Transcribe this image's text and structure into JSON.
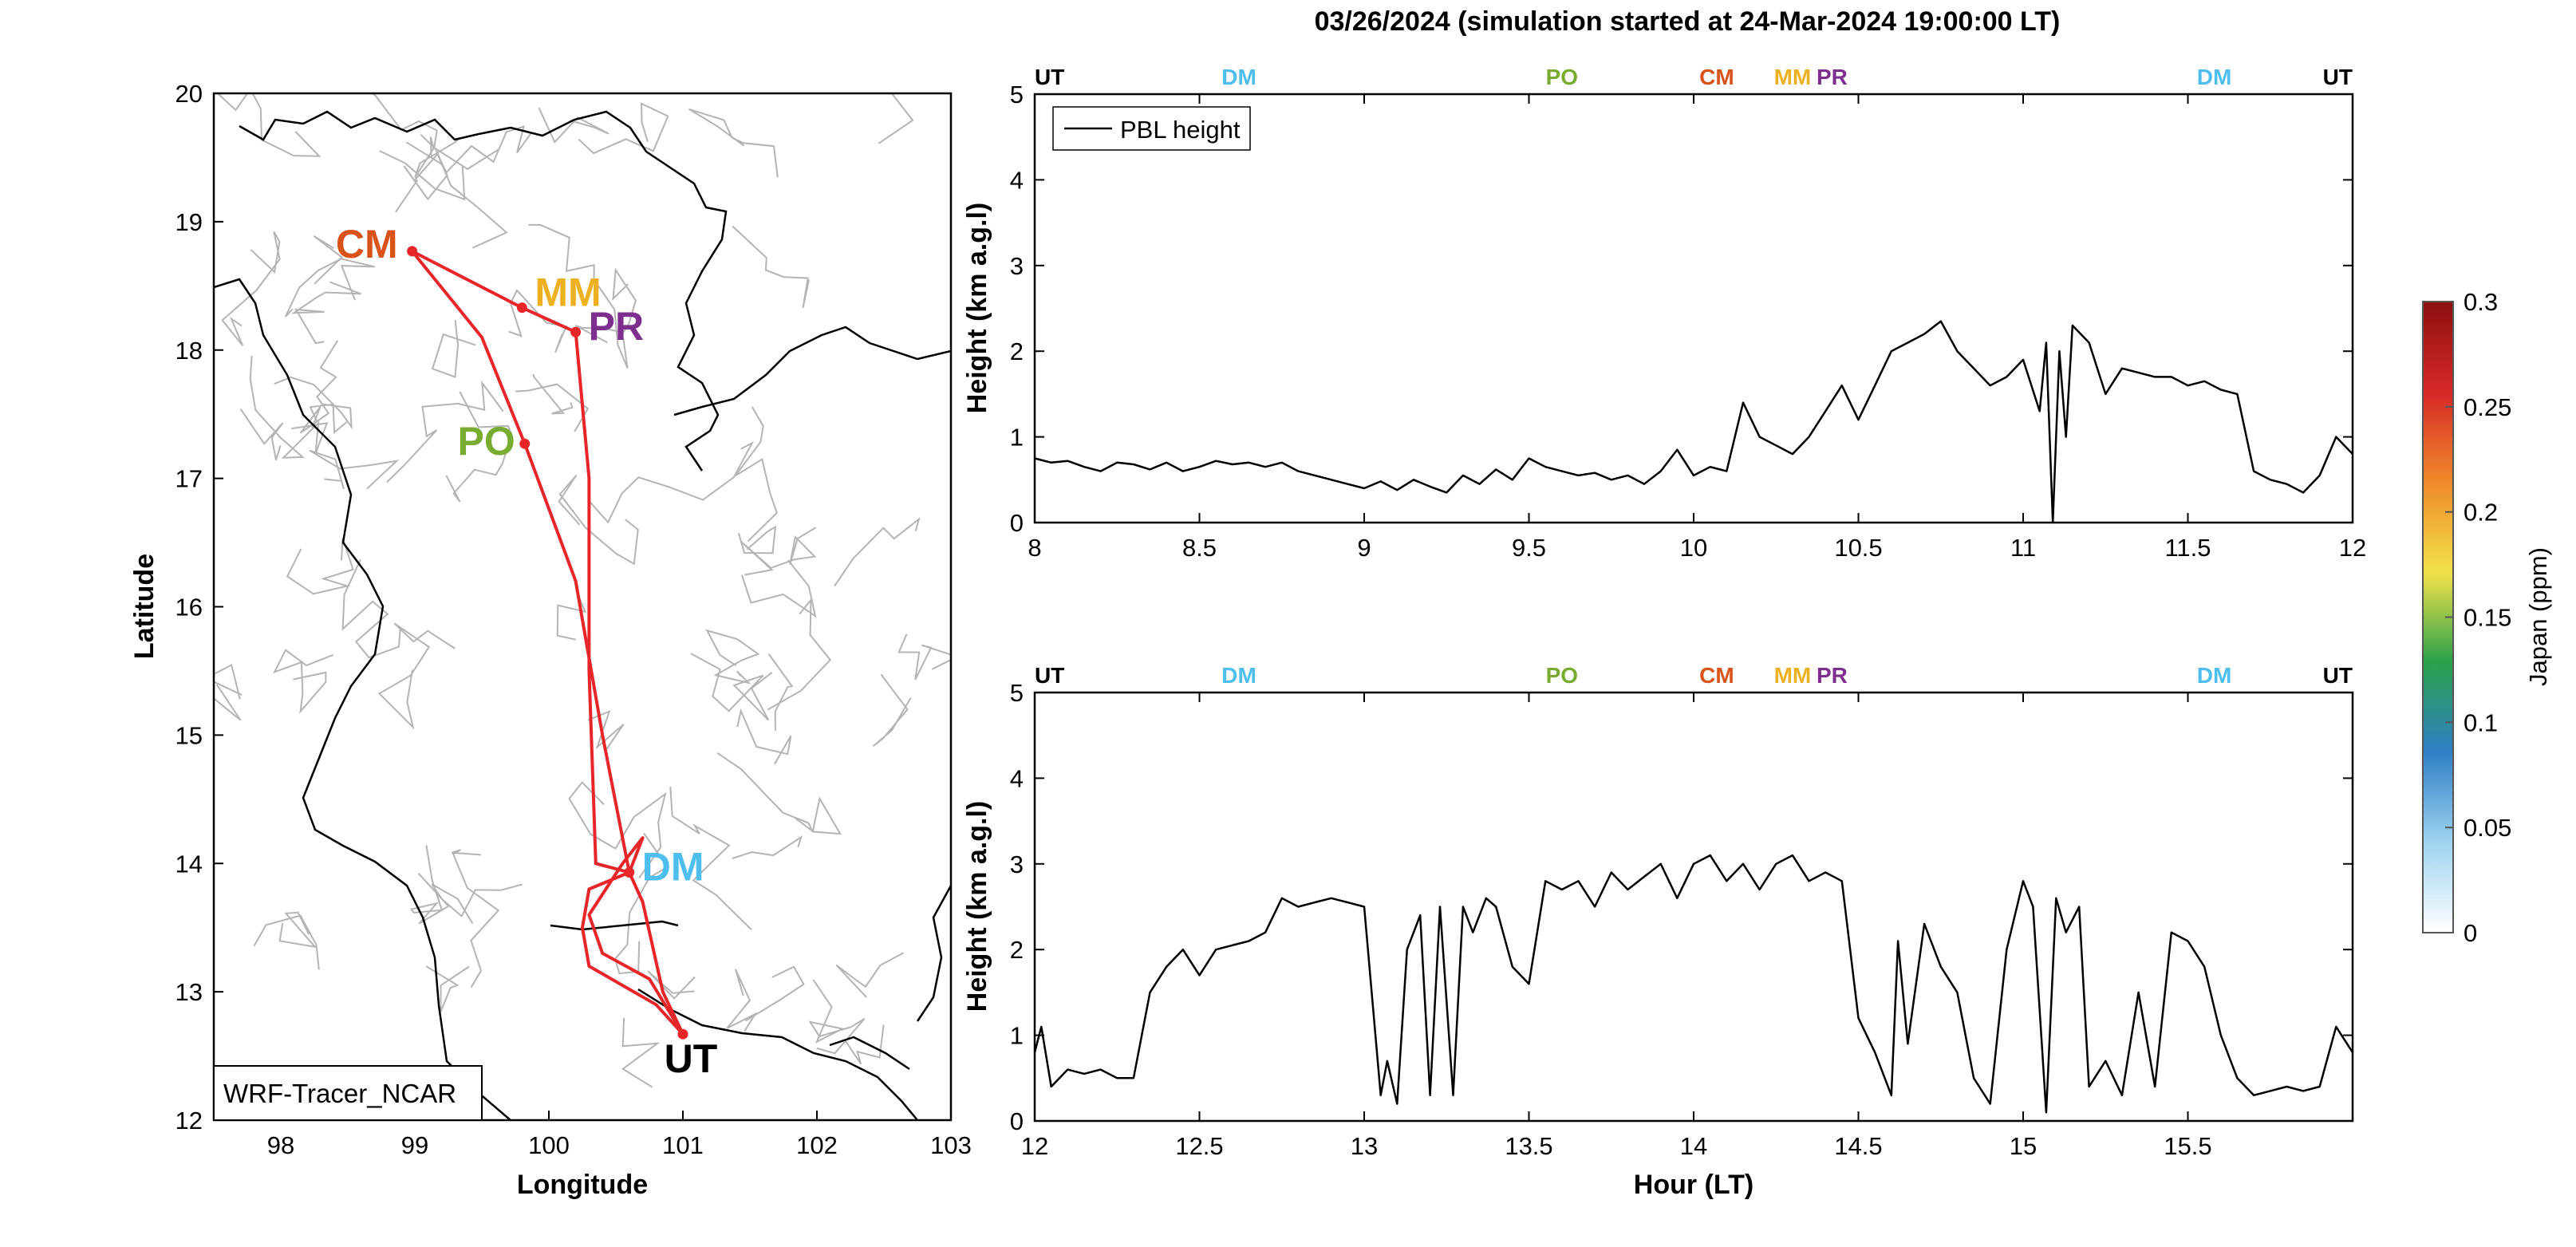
{
  "figure": {
    "title": "03/26/2024 (simulation started at 24-Mar-2024 19:00:00 LT)"
  },
  "chart_data": [
    {
      "type": "map",
      "xlabel": "Longitude",
      "ylabel": "Latitude",
      "xlim": [
        97.5,
        103
      ],
      "ylim": [
        12,
        20
      ],
      "xticks": [
        "98",
        "99",
        "100",
        "101",
        "102",
        "103"
      ],
      "yticks": [
        "12",
        "13",
        "14",
        "15",
        "16",
        "17",
        "18",
        "19",
        "20"
      ],
      "annotation": "WRF-Tracer_NCAR",
      "grid": false,
      "route_color": "#e8262a",
      "stations": [
        {
          "name": "CM",
          "lon": 98.98,
          "lat": 18.77,
          "color": "#d95319"
        },
        {
          "name": "MM",
          "lon": 99.8,
          "lat": 18.33,
          "color": "#edb120"
        },
        {
          "name": "PR",
          "lon": 100.2,
          "lat": 18.14,
          "color": "#7e2f8e"
        },
        {
          "name": "PO",
          "lon": 99.82,
          "lat": 17.27,
          "color": "#77ac30"
        },
        {
          "name": "DM",
          "lon": 100.6,
          "lat": 13.93,
          "color": "#4dbeee"
        },
        {
          "name": "UT",
          "lon": 101.0,
          "lat": 12.67,
          "color": "#000000"
        }
      ],
      "route": [
        {
          "lon": 101.0,
          "lat": 12.67
        },
        {
          "lon": 100.85,
          "lat": 13.0
        },
        {
          "lon": 100.7,
          "lat": 13.7
        },
        {
          "lon": 100.6,
          "lat": 13.93
        },
        {
          "lon": 100.4,
          "lat": 15.0
        },
        {
          "lon": 100.2,
          "lat": 16.2
        },
        {
          "lon": 99.82,
          "lat": 17.27
        },
        {
          "lon": 99.5,
          "lat": 18.1
        },
        {
          "lon": 98.98,
          "lat": 18.77
        },
        {
          "lon": 99.8,
          "lat": 18.33
        },
        {
          "lon": 100.2,
          "lat": 18.14
        },
        {
          "lon": 100.3,
          "lat": 17.0
        },
        {
          "lon": 100.3,
          "lat": 15.5
        },
        {
          "lon": 100.35,
          "lat": 14.0
        },
        {
          "lon": 100.6,
          "lat": 13.93
        },
        {
          "lon": 100.7,
          "lat": 14.2
        },
        {
          "lon": 100.55,
          "lat": 14.0
        },
        {
          "lon": 100.3,
          "lat": 13.6
        },
        {
          "lon": 100.4,
          "lat": 13.3
        },
        {
          "lon": 100.75,
          "lat": 13.1
        },
        {
          "lon": 101.0,
          "lat": 12.67
        },
        {
          "lon": 100.8,
          "lat": 12.9
        },
        {
          "lon": 100.3,
          "lat": 13.2
        },
        {
          "lon": 100.25,
          "lat": 13.5
        },
        {
          "lon": 100.3,
          "lat": 13.8
        },
        {
          "lon": 100.6,
          "lat": 13.93
        }
      ]
    },
    {
      "type": "line",
      "ylabel": "Height (km a.g.l)",
      "xlabel": "",
      "xlim": [
        8,
        12
      ],
      "ylim": [
        0,
        5
      ],
      "xticks": [
        "8",
        "8.5",
        "9",
        "9.5",
        "10",
        "10.5",
        "11",
        "11.5",
        "12"
      ],
      "yticks": [
        "0",
        "1",
        "2",
        "3",
        "4",
        "5"
      ],
      "legend": {
        "position": "top-left",
        "entries": [
          "PBL height"
        ]
      },
      "grid": false,
      "top_markers": [
        {
          "label": "UT",
          "x": 8.0,
          "color": "#000000"
        },
        {
          "label": "DM",
          "x": 8.62,
          "color": "#4dbeee"
        },
        {
          "label": "PO",
          "x": 9.6,
          "color": "#77ac30"
        },
        {
          "label": "CM",
          "x": 10.07,
          "color": "#d95319"
        },
        {
          "label": "MM",
          "x": 10.3,
          "color": "#edb120"
        },
        {
          "label": "PR",
          "x": 10.42,
          "color": "#7e2f8e"
        },
        {
          "label": "DM",
          "x": 11.58,
          "color": "#4dbeee"
        },
        {
          "label": "UT",
          "x": 12.0,
          "color": "#000000"
        }
      ],
      "series": [
        {
          "name": "PBL height",
          "color": "#000000",
          "x": [
            8.0,
            8.05,
            8.1,
            8.15,
            8.2,
            8.25,
            8.3,
            8.35,
            8.4,
            8.45,
            8.5,
            8.55,
            8.6,
            8.65,
            8.7,
            8.75,
            8.8,
            8.85,
            8.9,
            8.95,
            9.0,
            9.05,
            9.1,
            9.15,
            9.2,
            9.25,
            9.3,
            9.35,
            9.4,
            9.45,
            9.5,
            9.55,
            9.6,
            9.65,
            9.7,
            9.75,
            9.8,
            9.85,
            9.9,
            9.95,
            10.0,
            10.05,
            10.1,
            10.15,
            10.2,
            10.25,
            10.3,
            10.35,
            10.4,
            10.45,
            10.5,
            10.55,
            10.6,
            10.65,
            10.7,
            10.75,
            10.8,
            10.85,
            10.9,
            10.95,
            11.0,
            11.05,
            11.07,
            11.09,
            11.11,
            11.13,
            11.15,
            11.2,
            11.25,
            11.3,
            11.35,
            11.4,
            11.45,
            11.5,
            11.55,
            11.6,
            11.65,
            11.7,
            11.75,
            11.8,
            11.85,
            11.9,
            11.95,
            12.0
          ],
          "y": [
            0.75,
            0.7,
            0.72,
            0.65,
            0.6,
            0.7,
            0.68,
            0.62,
            0.7,
            0.6,
            0.65,
            0.72,
            0.68,
            0.7,
            0.65,
            0.7,
            0.6,
            0.55,
            0.5,
            0.45,
            0.4,
            0.48,
            0.38,
            0.5,
            0.42,
            0.35,
            0.55,
            0.45,
            0.62,
            0.5,
            0.75,
            0.65,
            0.6,
            0.55,
            0.58,
            0.5,
            0.55,
            0.45,
            0.6,
            0.85,
            0.55,
            0.65,
            0.6,
            1.4,
            1.0,
            0.9,
            0.8,
            1.0,
            1.3,
            1.6,
            1.2,
            1.6,
            2.0,
            2.1,
            2.2,
            2.35,
            2.0,
            1.8,
            1.6,
            1.7,
            1.9,
            1.3,
            2.1,
            0.0,
            2.0,
            1.0,
            2.3,
            2.1,
            1.5,
            1.8,
            1.75,
            1.7,
            1.7,
            1.6,
            1.65,
            1.55,
            1.5,
            0.6,
            0.5,
            0.45,
            0.35,
            0.55,
            1.0,
            0.8
          ]
        }
      ]
    },
    {
      "type": "line",
      "ylabel": "Height (km a.g.l)",
      "xlabel": "Hour (LT)",
      "xlim": [
        12,
        16
      ],
      "ylim": [
        0,
        5
      ],
      "xticks": [
        "12",
        "12.5",
        "13",
        "13.5",
        "14",
        "14.5",
        "15",
        "15.5"
      ],
      "yticks": [
        "0",
        "1",
        "2",
        "3",
        "4",
        "5"
      ],
      "grid": false,
      "top_markers": [
        {
          "label": "UT",
          "x": 12.0,
          "color": "#000000"
        },
        {
          "label": "DM",
          "x": 12.62,
          "color": "#4dbeee"
        },
        {
          "label": "PO",
          "x": 13.6,
          "color": "#77ac30"
        },
        {
          "label": "CM",
          "x": 14.07,
          "color": "#d95319"
        },
        {
          "label": "MM",
          "x": 14.3,
          "color": "#edb120"
        },
        {
          "label": "PR",
          "x": 14.42,
          "color": "#7e2f8e"
        },
        {
          "label": "DM",
          "x": 15.58,
          "color": "#4dbeee"
        },
        {
          "label": "UT",
          "x": 16.0,
          "color": "#000000"
        }
      ],
      "series": [
        {
          "name": "PBL height",
          "color": "#000000",
          "x": [
            12.0,
            12.02,
            12.05,
            12.1,
            12.15,
            12.2,
            12.25,
            12.3,
            12.35,
            12.4,
            12.45,
            12.5,
            12.55,
            12.6,
            12.65,
            12.7,
            12.75,
            12.8,
            12.85,
            12.9,
            12.95,
            13.0,
            13.05,
            13.07,
            13.1,
            13.13,
            13.17,
            13.2,
            13.23,
            13.27,
            13.3,
            13.33,
            13.37,
            13.4,
            13.45,
            13.5,
            13.55,
            13.6,
            13.65,
            13.7,
            13.75,
            13.8,
            13.85,
            13.9,
            13.95,
            14.0,
            14.05,
            14.1,
            14.15,
            14.2,
            14.25,
            14.3,
            14.35,
            14.4,
            14.45,
            14.5,
            14.55,
            14.6,
            14.62,
            14.65,
            14.7,
            14.75,
            14.8,
            14.85,
            14.9,
            14.95,
            15.0,
            15.03,
            15.07,
            15.1,
            15.13,
            15.17,
            15.2,
            15.25,
            15.3,
            15.35,
            15.4,
            15.45,
            15.5,
            15.55,
            15.6,
            15.65,
            15.7,
            15.75,
            15.8,
            15.85,
            15.9,
            15.95,
            16.0
          ],
          "y": [
            0.8,
            1.1,
            0.4,
            0.6,
            0.55,
            0.6,
            0.5,
            0.5,
            1.5,
            1.8,
            2.0,
            1.7,
            2.0,
            2.05,
            2.1,
            2.2,
            2.6,
            2.5,
            2.55,
            2.6,
            2.55,
            2.5,
            0.3,
            0.7,
            0.2,
            2.0,
            2.4,
            0.3,
            2.5,
            0.3,
            2.5,
            2.2,
            2.6,
            2.5,
            1.8,
            1.6,
            2.8,
            2.7,
            2.8,
            2.5,
            2.9,
            2.7,
            2.85,
            3.0,
            2.6,
            3.0,
            3.1,
            2.8,
            3.0,
            2.7,
            3.0,
            3.1,
            2.8,
            2.9,
            2.8,
            1.2,
            0.8,
            0.3,
            2.1,
            0.9,
            2.3,
            1.8,
            1.5,
            0.5,
            0.2,
            2.0,
            2.8,
            2.5,
            0.1,
            2.6,
            2.2,
            2.5,
            0.4,
            0.7,
            0.3,
            1.5,
            0.4,
            2.2,
            2.1,
            1.8,
            1.0,
            0.5,
            0.3,
            0.35,
            0.4,
            0.35,
            0.4,
            1.1,
            0.8
          ]
        }
      ]
    },
    {
      "type": "colorbar",
      "label": "Japan (ppm)",
      "range": [
        0,
        0.3
      ],
      "ticks": [
        "0",
        "0.05",
        "0.1",
        "0.15",
        "0.2",
        "0.25",
        "0.3"
      ],
      "colormap": [
        "#ffffff",
        "#9fd4f0",
        "#2f7fc7",
        "#2ba14a",
        "#f2e24a",
        "#f08a2a",
        "#d62828",
        "#8c1010"
      ]
    }
  ]
}
